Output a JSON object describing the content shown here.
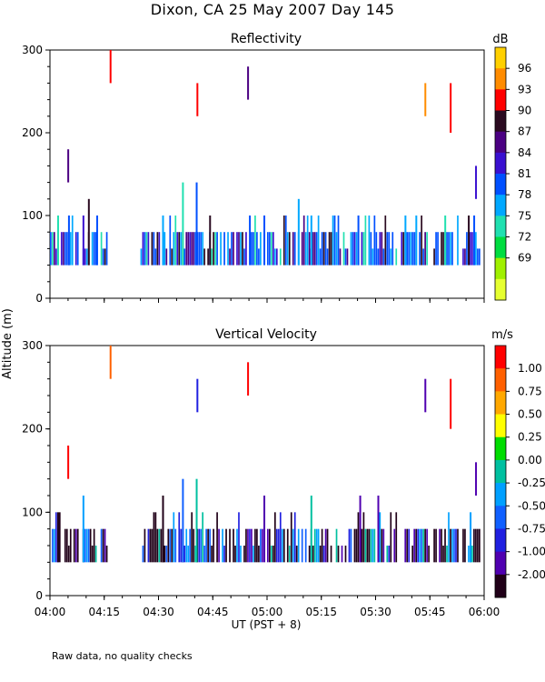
{
  "title": "Dixon, CA 25 May 2007  Day 145",
  "footnote": "Raw data, no quality checks",
  "y_axis_label": "Altitude (m)",
  "x_axis_label": "UT  (PST + 8)",
  "chart_data": [
    {
      "type": "heatmap",
      "title": "Reflectivity",
      "xlabel": "UT  (PST + 8)",
      "ylabel": "Altitude (m)",
      "x_range_minutes": [
        0,
        120
      ],
      "x_ticks": [
        {
          "t": 0,
          "label": "04:00"
        },
        {
          "t": 15,
          "label": "04:15"
        },
        {
          "t": 30,
          "label": "04:30"
        },
        {
          "t": 45,
          "label": "04:45"
        },
        {
          "t": 60,
          "label": "05:00"
        },
        {
          "t": 75,
          "label": "05:15"
        },
        {
          "t": 90,
          "label": "05:30"
        },
        {
          "t": 105,
          "label": "05:45"
        },
        {
          "t": 120,
          "label": "06:00"
        }
      ],
      "ylim": [
        0,
        300
      ],
      "y_ticks": [
        0,
        100,
        200,
        300
      ],
      "colorbar": {
        "unit": "dB",
        "labels": [
          "96",
          "93",
          "90",
          "87",
          "84",
          "81",
          "78",
          "75",
          "72",
          "69"
        ],
        "colors": [
          "#ffd000",
          "#ff8c00",
          "#ff0000",
          "#2a0a20",
          "#4b0082",
          "#3a10d0",
          "#0050ff",
          "#00a8ff",
          "#20e0b0",
          "#00dd40",
          "#a0f000",
          "#e6ff30"
        ]
      },
      "echo_band": {
        "bottom_m": 40,
        "top_m": 80,
        "minutes_ranges": [
          [
            0,
            8
          ],
          [
            9,
            13
          ],
          [
            14,
            16
          ],
          [
            25,
            59
          ],
          [
            60,
            96
          ],
          [
            97,
            105
          ],
          [
            106,
            113
          ],
          [
            114,
            119
          ]
        ]
      },
      "isolated_echoes": [
        {
          "t": 4.8,
          "y0": 140,
          "y1": 180,
          "color": "#4b0082"
        },
        {
          "t": 16.5,
          "y0": 260,
          "y1": 300,
          "color": "#ff0000"
        },
        {
          "t": 40.5,
          "y0": 220,
          "y1": 260,
          "color": "#ff0000"
        },
        {
          "t": 54.5,
          "y0": 240,
          "y1": 280,
          "color": "#4b0082"
        },
        {
          "t": 103.5,
          "y0": 220,
          "y1": 260,
          "color": "#ff8c00"
        },
        {
          "t": 110.5,
          "y0": 200,
          "y1": 260,
          "color": "#ff0000"
        },
        {
          "t": 117.5,
          "y0": 120,
          "y1": 160,
          "color": "#3a10d0"
        }
      ],
      "tall_spikes": [
        {
          "t": 2,
          "top": 100
        },
        {
          "t": 5,
          "top": 100
        },
        {
          "t": 9,
          "top": 100
        },
        {
          "t": 10.5,
          "top": 120
        },
        {
          "t": 12.8,
          "top": 100
        },
        {
          "t": 31,
          "top": 100
        },
        {
          "t": 36.5,
          "top": 140
        },
        {
          "t": 40.3,
          "top": 140
        },
        {
          "t": 44,
          "top": 100
        },
        {
          "t": 55,
          "top": 100
        },
        {
          "t": 59,
          "top": 100
        },
        {
          "t": 68.5,
          "top": 120
        },
        {
          "t": 72,
          "top": 100
        },
        {
          "t": 85,
          "top": 100
        },
        {
          "t": 98,
          "top": 100
        },
        {
          "t": 101,
          "top": 100
        },
        {
          "t": 109,
          "top": 100
        },
        {
          "t": 115.5,
          "top": 100
        },
        {
          "t": 117,
          "top": 100
        }
      ]
    },
    {
      "type": "heatmap",
      "title": "Vertical Velocity",
      "xlabel": "UT  (PST + 8)",
      "ylabel": "Altitude (m)",
      "x_range_minutes": [
        0,
        120
      ],
      "x_ticks": [
        {
          "t": 0,
          "label": "04:00"
        },
        {
          "t": 15,
          "label": "04:15"
        },
        {
          "t": 30,
          "label": "04:30"
        },
        {
          "t": 45,
          "label": "04:45"
        },
        {
          "t": 60,
          "label": "05:00"
        },
        {
          "t": 75,
          "label": "05:15"
        },
        {
          "t": 90,
          "label": "05:30"
        },
        {
          "t": 105,
          "label": "05:45"
        },
        {
          "t": 120,
          "label": "06:00"
        }
      ],
      "ylim": [
        0,
        300
      ],
      "y_ticks": [
        0,
        100,
        200,
        300
      ],
      "colorbar": {
        "unit": "m/s",
        "labels": [
          "1.00",
          "0.75",
          "0.50",
          "0.25",
          "0.00",
          "-0.25",
          "-0.50",
          "-0.75",
          "-1.00",
          "-2.00"
        ],
        "colors": [
          "#ff0000",
          "#ff6000",
          "#ffa800",
          "#ffff00",
          "#00dd00",
          "#00c0a0",
          "#00a0ff",
          "#1060ff",
          "#2020e0",
          "#5000b0",
          "#200018"
        ]
      },
      "echo_band": {
        "bottom_m": 40,
        "top_m": 80,
        "minutes_ranges": [
          [
            0,
            8
          ],
          [
            9,
            13
          ],
          [
            14,
            16
          ],
          [
            25,
            59
          ],
          [
            60,
            96
          ],
          [
            97,
            105
          ],
          [
            106,
            113
          ],
          [
            114,
            119
          ]
        ]
      },
      "isolated_echoes": [
        {
          "t": 4.8,
          "y0": 140,
          "y1": 180,
          "color": "#ff0000"
        },
        {
          "t": 16.5,
          "y0": 260,
          "y1": 300,
          "color": "#ff6000"
        },
        {
          "t": 40.5,
          "y0": 220,
          "y1": 260,
          "color": "#2020e0"
        },
        {
          "t": 54.5,
          "y0": 240,
          "y1": 280,
          "color": "#ff0000"
        },
        {
          "t": 103.5,
          "y0": 220,
          "y1": 260,
          "color": "#5000b0"
        },
        {
          "t": 110.5,
          "y0": 200,
          "y1": 260,
          "color": "#ff0000"
        },
        {
          "t": 117.5,
          "y0": 120,
          "y1": 160,
          "color": "#5000b0"
        }
      ],
      "tall_spikes": [
        {
          "t": 2,
          "top": 100
        },
        {
          "t": 9,
          "top": 120
        },
        {
          "t": 31,
          "top": 120
        },
        {
          "t": 36.5,
          "top": 140
        },
        {
          "t": 40.3,
          "top": 140
        },
        {
          "t": 59,
          "top": 120
        },
        {
          "t": 72,
          "top": 120
        },
        {
          "t": 85.5,
          "top": 120
        },
        {
          "t": 90.5,
          "top": 120
        },
        {
          "t": 116,
          "top": 100
        }
      ]
    }
  ]
}
